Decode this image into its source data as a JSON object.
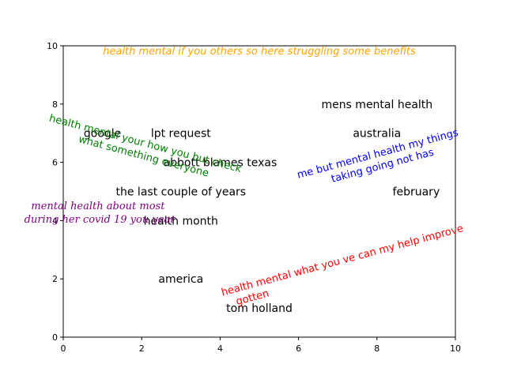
{
  "chart_data": {
    "type": "scatter",
    "xlim": [
      0,
      10
    ],
    "ylim": [
      0,
      10
    ],
    "xticks": [
      "0",
      "2",
      "4",
      "6",
      "8",
      "10"
    ],
    "yticks": [
      "0",
      "2",
      "4",
      "6",
      "8",
      "10"
    ],
    "grid": false,
    "words": [
      {
        "text": "google",
        "x": 1.0,
        "y": 7.0
      },
      {
        "text": "lpt request",
        "x": 3.0,
        "y": 7.0
      },
      {
        "text": "abbott blames texas",
        "x": 4.0,
        "y": 6.0
      },
      {
        "text": "the last couple of years",
        "x": 3.0,
        "y": 5.0
      },
      {
        "text": "health month",
        "x": 3.0,
        "y": 4.0
      },
      {
        "text": "america",
        "x": 3.0,
        "y": 2.0
      },
      {
        "text": "tom holland",
        "x": 5.0,
        "y": 1.0
      },
      {
        "text": "mens mental health",
        "x": 8.0,
        "y": 8.0
      },
      {
        "text": "australia",
        "x": 8.0,
        "y": 7.0
      },
      {
        "text": "february",
        "x": 9.0,
        "y": 5.0
      }
    ],
    "annotations": [
      {
        "text": "health mental if you others so here struggling some benefits",
        "color": "#ffa500",
        "style": "italic",
        "family": "sans",
        "rotation": 0
      },
      {
        "text": "health mental your how you but check what something everyone",
        "color": "#008000",
        "style": "normal",
        "family": "sans",
        "rotation": -15
      },
      {
        "text": "me but mental health my things taking going not has",
        "color": "#0000ff",
        "style": "normal",
        "family": "sans",
        "rotation": 15
      },
      {
        "text": "mental health about most during her covid 19 you year",
        "color": "#800080",
        "style": "italic",
        "family": "serif",
        "rotation": 0
      },
      {
        "text": "health mental what you ve can my help improve gotten",
        "color": "#ff0000",
        "style": "normal",
        "family": "sans",
        "rotation": 15
      }
    ]
  }
}
